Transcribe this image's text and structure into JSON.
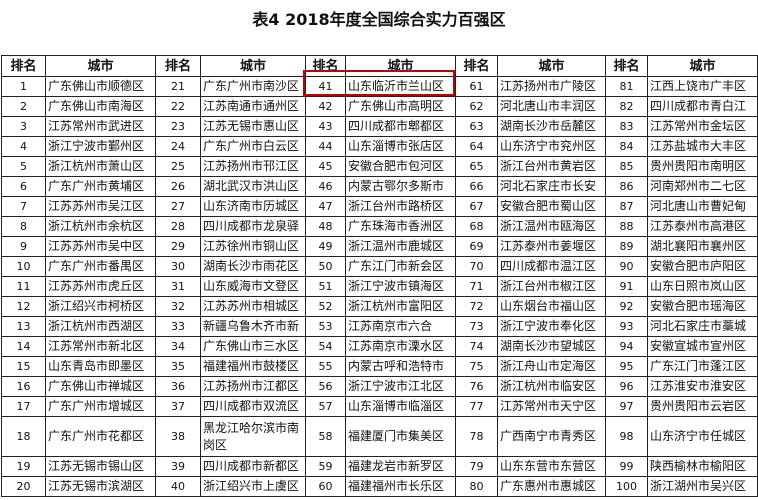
{
  "title": "表4 2018年度全国综合实力百强区",
  "headers": [
    "排名",
    "城市",
    "排名",
    "城市",
    "排名",
    "城市",
    "排名",
    "城市",
    "排名",
    "城市"
  ],
  "highlight_color": "#c00000",
  "highlighted_rank": "41",
  "columns": [
    [
      [
        "1",
        "广东佛山市顺德区"
      ],
      [
        "2",
        "广东佛山市南海区"
      ],
      [
        "3",
        "江苏常州市武进区"
      ],
      [
        "4",
        "浙江宁波市鄞州区"
      ],
      [
        "5",
        "浙江杭州市萧山区"
      ],
      [
        "6",
        "广东广州市黄埔区"
      ],
      [
        "7",
        "江苏苏州市吴江区"
      ],
      [
        "8",
        "浙江杭州市余杭区"
      ],
      [
        "9",
        "江苏苏州市吴中区"
      ],
      [
        "10",
        "广东广州市番禺区"
      ],
      [
        "11",
        "江苏苏州市虎丘区"
      ],
      [
        "12",
        "浙江绍兴市柯桥区"
      ],
      [
        "13",
        "浙江杭州市西湖区"
      ],
      [
        "14",
        "江苏常州市新北区"
      ],
      [
        "15",
        "山东青岛市即墨区"
      ],
      [
        "16",
        "广东佛山市禅城区"
      ],
      [
        "17",
        "广东广州市增城区"
      ],
      [
        "18",
        "广东广州市花都区"
      ],
      [
        "19",
        "江苏无锡市锡山区"
      ],
      [
        "20",
        "江苏无锡市滨湖区"
      ]
    ],
    [
      [
        "21",
        "广东广州市南沙区"
      ],
      [
        "22",
        "江苏南通市通州区"
      ],
      [
        "23",
        "江苏无锡市惠山区"
      ],
      [
        "24",
        "广东广州市白云区"
      ],
      [
        "25",
        "江苏扬州市邗江区"
      ],
      [
        "26",
        "湖北武汉市洪山区"
      ],
      [
        "27",
        "山东济南市历城区"
      ],
      [
        "28",
        "四川成都市龙泉驿"
      ],
      [
        "29",
        "江苏徐州市铜山区"
      ],
      [
        "30",
        "湖南长沙市雨花区"
      ],
      [
        "31",
        "山东威海市文登区"
      ],
      [
        "32",
        "江苏苏州市相城区"
      ],
      [
        "33",
        "新疆乌鲁木齐市新"
      ],
      [
        "34",
        "广东佛山市三水区"
      ],
      [
        "35",
        "福建福州市鼓楼区"
      ],
      [
        "36",
        "江苏扬州市江都区"
      ],
      [
        "37",
        "四川成都市双流区"
      ],
      [
        "38",
        "黑龙江哈尔滨市南岗区"
      ],
      [
        "39",
        "四川成都市新都区"
      ],
      [
        "40",
        "浙江绍兴市上虞区"
      ]
    ],
    [
      [
        "41",
        "山东临沂市兰山区"
      ],
      [
        "42",
        "广东佛山市高明区"
      ],
      [
        "43",
        "四川成都市郫都区"
      ],
      [
        "44",
        "山东淄博市张店区"
      ],
      [
        "45",
        "安徽合肥市包河区"
      ],
      [
        "46",
        "内蒙古鄂尔多斯市"
      ],
      [
        "47",
        "浙江台州市路桥区"
      ],
      [
        "48",
        "广东珠海市香洲区"
      ],
      [
        "49",
        "浙江温州市鹿城区"
      ],
      [
        "50",
        "广东江门市新会区"
      ],
      [
        "51",
        "浙江宁波市镇海区"
      ],
      [
        "52",
        "浙江杭州市富阳区"
      ],
      [
        "53",
        "江苏南京市六合"
      ],
      [
        "54",
        "江苏南京市溧水区"
      ],
      [
        "55",
        "内蒙古呼和浩特市"
      ],
      [
        "56",
        "浙江宁波市江北区"
      ],
      [
        "57",
        "山东淄博市临淄区"
      ],
      [
        "58",
        "福建厦门市集美区"
      ],
      [
        "59",
        "福建龙岩市新罗区"
      ],
      [
        "60",
        "福建福州市长乐区"
      ]
    ],
    [
      [
        "61",
        "江苏扬州市广陵区"
      ],
      [
        "62",
        "河北唐山市丰润区"
      ],
      [
        "63",
        "湖南长沙市岳麓区"
      ],
      [
        "64",
        "山东济宁市兖州区"
      ],
      [
        "65",
        "浙江台州市黄岩区"
      ],
      [
        "66",
        "河北石家庄市长安"
      ],
      [
        "67",
        "安徽合肥市蜀山区"
      ],
      [
        "68",
        "浙江温州市瓯海区"
      ],
      [
        "69",
        "江苏泰州市姜堰区"
      ],
      [
        "70",
        "四川成都市温江区"
      ],
      [
        "71",
        "浙江台州市椒江区"
      ],
      [
        "72",
        "山东烟台市福山区"
      ],
      [
        "73",
        "浙江宁波市奉化区"
      ],
      [
        "74",
        "湖南长沙市望城区"
      ],
      [
        "75",
        "浙江舟山市定海区"
      ],
      [
        "76",
        "浙江杭州市临安区"
      ],
      [
        "77",
        "江苏常州市天宁区"
      ],
      [
        "78",
        "广西南宁市青秀区"
      ],
      [
        "79",
        "山东东营市东营区"
      ],
      [
        "80",
        "广东惠州市惠城区"
      ]
    ],
    [
      [
        "81",
        "江西上饶市广丰区"
      ],
      [
        "82",
        "四川成都市青白江"
      ],
      [
        "83",
        "江苏常州市金坛区"
      ],
      [
        "84",
        "江苏盐城市大丰区"
      ],
      [
        "85",
        "贵州贵阳市南明区"
      ],
      [
        "86",
        "河南郑州市二七区"
      ],
      [
        "87",
        "河北唐山市曹妃甸"
      ],
      [
        "88",
        "江苏泰州市高港区"
      ],
      [
        "89",
        "湖北襄阳市襄州区"
      ],
      [
        "90",
        "安徽合肥市庐阳区"
      ],
      [
        "91",
        "山东日照市岚山区"
      ],
      [
        "92",
        "安徽合肥市瑶海区"
      ],
      [
        "93",
        "河北石家庄市藁城"
      ],
      [
        "94",
        "安徽宣城市宣州区"
      ],
      [
        "95",
        "广东江门市蓬江区"
      ],
      [
        "96",
        "江苏淮安市淮安区"
      ],
      [
        "97",
        "贵州贵阳市云岩区"
      ],
      [
        "98",
        "山东济宁市任城区"
      ],
      [
        "99",
        "陕西榆林市榆阳区"
      ],
      [
        "100",
        "浙江湖州市吴兴区"
      ]
    ]
  ]
}
